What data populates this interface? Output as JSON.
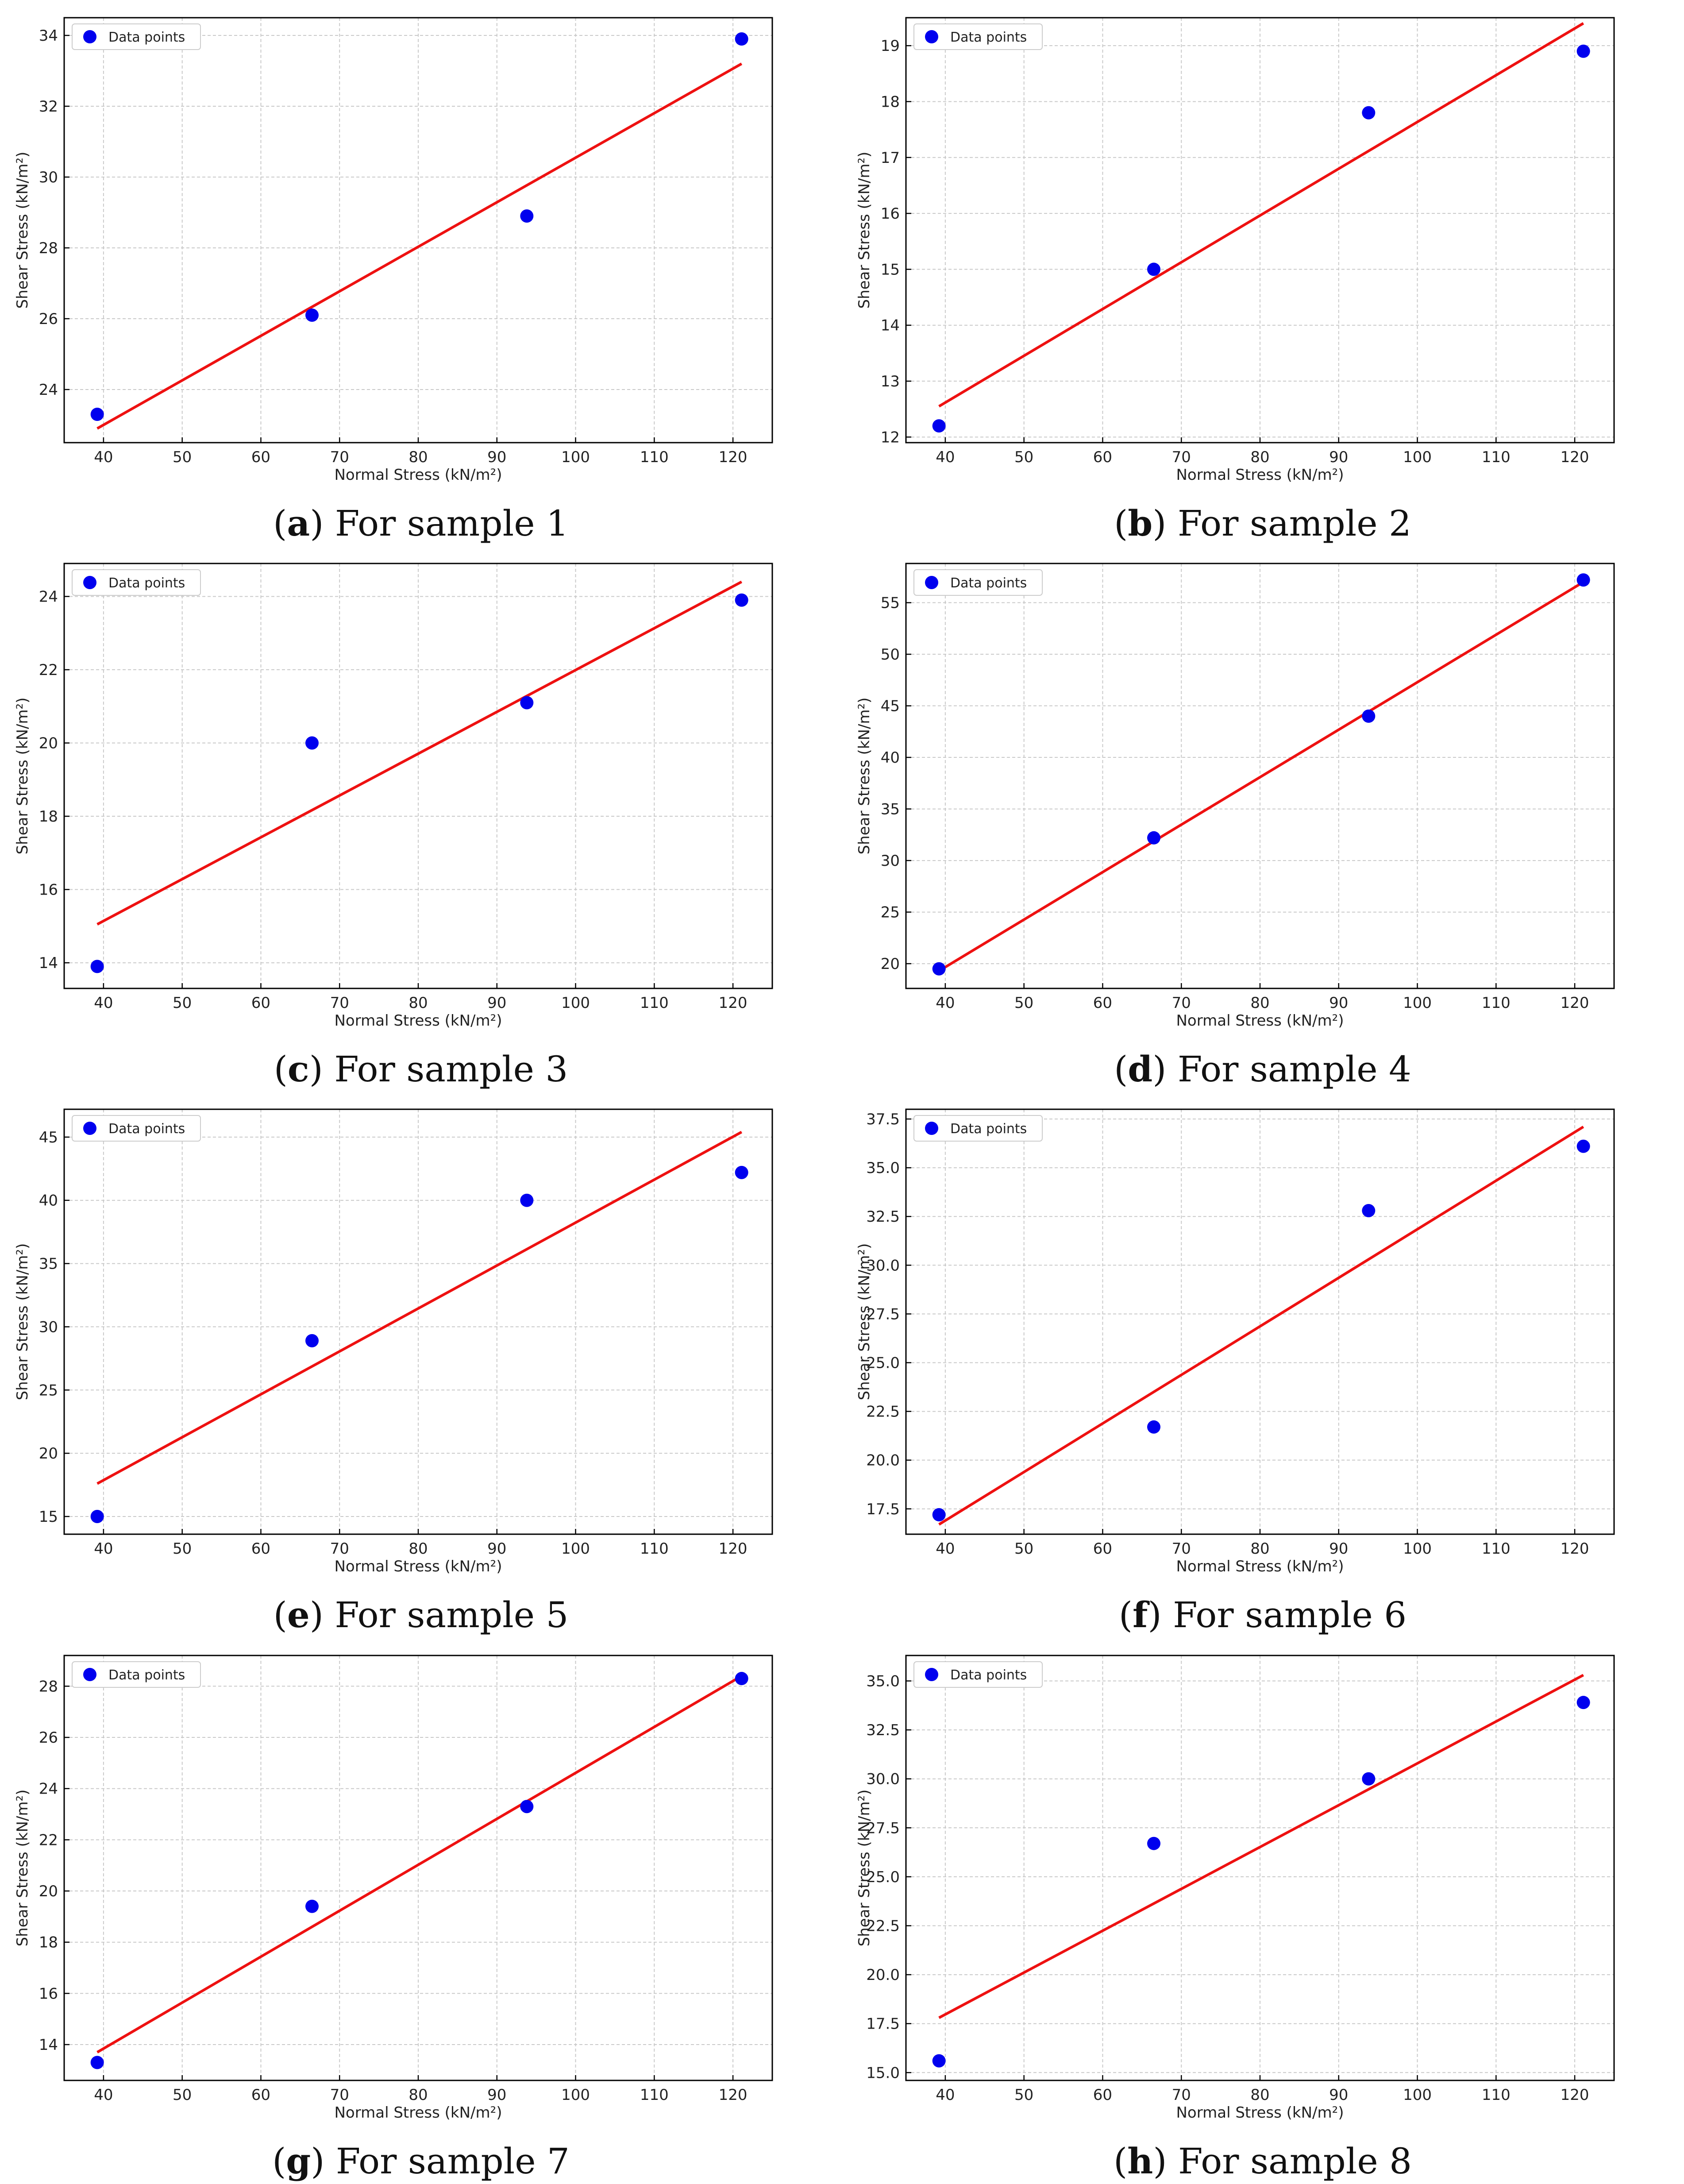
{
  "colors": {
    "points": "#0000ee",
    "fit_line": "#ee1111",
    "grid": "#c9c9c9",
    "axes": "#000000",
    "text": "#222222"
  },
  "chart_data": [
    {
      "id": "a",
      "type": "scatter",
      "series_type": "scatter+fit-line",
      "caption_letter": "a",
      "caption_text": "For sample 1",
      "xlabel": "Normal Stress (kN/m²)",
      "ylabel": "Shear Stress (kN/m²)",
      "legend_label": "Data points",
      "legend_location": "top-left",
      "grid": true,
      "xlim": [
        35,
        125
      ],
      "ylim": [
        22.5,
        34.5
      ],
      "xticks": [
        40,
        50,
        60,
        70,
        80,
        90,
        100,
        110,
        120
      ],
      "yticks": [
        24,
        26,
        28,
        30,
        32,
        34
      ],
      "ytick_decimals": 0,
      "points": {
        "x": [
          39.2,
          66.5,
          93.8,
          121.1
        ],
        "y": [
          23.3,
          26.1,
          28.9,
          33.9
        ]
      },
      "fit_line": {
        "x": [
          39.2,
          121.1
        ],
        "y": [
          22.9,
          33.2
        ]
      }
    },
    {
      "id": "b",
      "type": "scatter",
      "series_type": "scatter+fit-line",
      "caption_letter": "b",
      "caption_text": "For sample 2",
      "xlabel": "Normal Stress (kN/m²)",
      "ylabel": "Shear Stress (kN/m²)",
      "legend_label": "Data points",
      "legend_location": "top-left",
      "grid": true,
      "xlim": [
        35,
        125
      ],
      "ylim": [
        11.9,
        19.5
      ],
      "xticks": [
        40,
        50,
        60,
        70,
        80,
        90,
        100,
        110,
        120
      ],
      "yticks": [
        12,
        13,
        14,
        15,
        16,
        17,
        18,
        19
      ],
      "ytick_decimals": 0,
      "points": {
        "x": [
          39.2,
          66.5,
          93.8,
          121.1
        ],
        "y": [
          12.2,
          15.0,
          17.8,
          18.9
        ]
      },
      "fit_line": {
        "x": [
          39.2,
          121.1
        ],
        "y": [
          12.55,
          19.4
        ]
      }
    },
    {
      "id": "c",
      "type": "scatter",
      "series_type": "scatter+fit-line",
      "caption_letter": "c",
      "caption_text": "For sample 3",
      "xlabel": "Normal Stress (kN/m²)",
      "ylabel": "Shear Stress (kN/m²)",
      "legend_label": "Data points",
      "legend_location": "top-left",
      "grid": true,
      "xlim": [
        35,
        125
      ],
      "ylim": [
        13.3,
        24.9
      ],
      "xticks": [
        40,
        50,
        60,
        70,
        80,
        90,
        100,
        110,
        120
      ],
      "yticks": [
        14,
        16,
        18,
        20,
        22,
        24
      ],
      "ytick_decimals": 0,
      "points": {
        "x": [
          39.2,
          66.5,
          93.8,
          121.1
        ],
        "y": [
          13.9,
          20.0,
          21.1,
          23.9
        ]
      },
      "fit_line": {
        "x": [
          39.2,
          121.1
        ],
        "y": [
          15.05,
          24.4
        ]
      }
    },
    {
      "id": "d",
      "type": "scatter",
      "series_type": "scatter+fit-line",
      "caption_letter": "d",
      "caption_text": "For sample 4",
      "xlabel": "Normal Stress (kN/m²)",
      "ylabel": "Shear Stress (kN/m²)",
      "legend_label": "Data points",
      "legend_location": "top-left",
      "grid": true,
      "xlim": [
        35,
        125
      ],
      "ylim": [
        17.6,
        58.8
      ],
      "xticks": [
        40,
        50,
        60,
        70,
        80,
        90,
        100,
        110,
        120
      ],
      "yticks": [
        20,
        25,
        30,
        35,
        40,
        45,
        50,
        55
      ],
      "ytick_decimals": 0,
      "points": {
        "x": [
          39.2,
          66.5,
          93.8,
          121.1
        ],
        "y": [
          19.5,
          32.2,
          44.0,
          57.2
        ]
      },
      "fit_line": {
        "x": [
          39.2,
          121.1
        ],
        "y": [
          19.3,
          57.0
        ]
      }
    },
    {
      "id": "e",
      "type": "scatter",
      "series_type": "scatter+fit-line",
      "caption_letter": "e",
      "caption_text": "For sample 5",
      "xlabel": "Normal Stress (kN/m²)",
      "ylabel": "Shear Stress (kN/m²)",
      "legend_label": "Data points",
      "legend_location": "top-left",
      "grid": true,
      "xlim": [
        35,
        125
      ],
      "ylim": [
        13.6,
        47.2
      ],
      "xticks": [
        40,
        50,
        60,
        70,
        80,
        90,
        100,
        110,
        120
      ],
      "yticks": [
        15,
        20,
        25,
        30,
        35,
        40,
        45
      ],
      "ytick_decimals": 0,
      "points": {
        "x": [
          39.2,
          66.5,
          93.8,
          121.1
        ],
        "y": [
          15.0,
          28.9,
          40.0,
          42.2
        ]
      },
      "fit_line": {
        "x": [
          39.2,
          121.1
        ],
        "y": [
          17.6,
          45.4
        ]
      }
    },
    {
      "id": "f",
      "type": "scatter",
      "series_type": "scatter+fit-line",
      "caption_letter": "f",
      "caption_text": "For sample 6",
      "xlabel": "Normal Stress (kN/m²)",
      "ylabel": "Shear Stress (kN/m²)",
      "legend_label": "Data points",
      "legend_location": "top-left",
      "grid": true,
      "xlim": [
        35,
        125
      ],
      "ylim": [
        16.2,
        38.0
      ],
      "xticks": [
        40,
        50,
        60,
        70,
        80,
        90,
        100,
        110,
        120
      ],
      "yticks": [
        17.5,
        20.0,
        22.5,
        25.0,
        27.5,
        30.0,
        32.5,
        35.0,
        37.5
      ],
      "ytick_decimals": 1,
      "points": {
        "x": [
          39.2,
          66.5,
          93.8,
          121.1
        ],
        "y": [
          17.2,
          21.7,
          32.8,
          36.1
        ]
      },
      "fit_line": {
        "x": [
          39.2,
          121.1
        ],
        "y": [
          16.7,
          37.1
        ]
      }
    },
    {
      "id": "g",
      "type": "scatter",
      "series_type": "scatter+fit-line",
      "caption_letter": "g",
      "caption_text": "For sample 7",
      "xlabel": "Normal Stress (kN/m²)",
      "ylabel": "Shear Stress (kN/m²)",
      "legend_label": "Data points",
      "legend_location": "top-left",
      "grid": true,
      "xlim": [
        35,
        125
      ],
      "ylim": [
        12.6,
        29.2
      ],
      "xticks": [
        40,
        50,
        60,
        70,
        80,
        90,
        100,
        110,
        120
      ],
      "yticks": [
        14,
        16,
        18,
        20,
        22,
        24,
        26,
        28
      ],
      "ytick_decimals": 0,
      "points": {
        "x": [
          39.2,
          66.5,
          93.8,
          121.1
        ],
        "y": [
          13.3,
          19.4,
          23.3,
          28.3
        ]
      },
      "fit_line": {
        "x": [
          39.2,
          121.1
        ],
        "y": [
          13.7,
          28.4
        ]
      }
    },
    {
      "id": "h",
      "type": "scatter",
      "series_type": "scatter+fit-line",
      "caption_letter": "h",
      "caption_text": "For sample 8",
      "xlabel": "Normal Stress (kN/m²)",
      "ylabel": "Shear Stress (kN/m²)",
      "legend_label": "Data points",
      "legend_location": "top-left",
      "grid": true,
      "xlim": [
        35,
        125
      ],
      "ylim": [
        14.6,
        36.3
      ],
      "xticks": [
        40,
        50,
        60,
        70,
        80,
        90,
        100,
        110,
        120
      ],
      "yticks": [
        15.0,
        17.5,
        20.0,
        22.5,
        25.0,
        27.5,
        30.0,
        32.5,
        35.0
      ],
      "ytick_decimals": 1,
      "points": {
        "x": [
          39.2,
          66.5,
          93.8,
          121.1
        ],
        "y": [
          15.6,
          26.7,
          30.0,
          33.9
        ]
      },
      "fit_line": {
        "x": [
          39.2,
          121.1
        ],
        "y": [
          17.8,
          35.3
        ]
      }
    }
  ]
}
